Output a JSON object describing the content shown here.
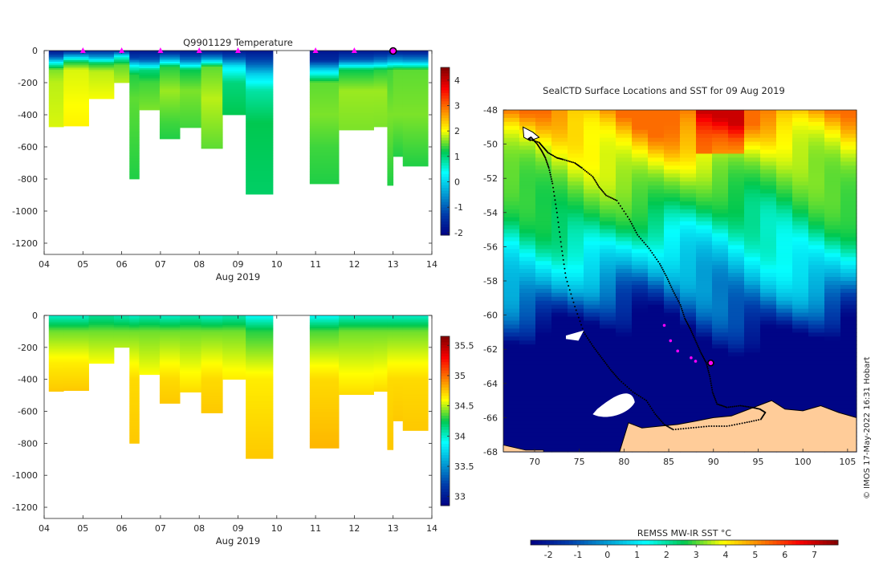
{
  "figure": {
    "credit": "© IMOS 17-May-2022 16:31 Hobart",
    "track_color": "#000000",
    "marker_color": "#ff00ff",
    "land_color": "#ffcc99"
  },
  "chart_data": [
    {
      "type": "heatmap",
      "name": "temperature-section",
      "title": "Q9901129  Temperature",
      "xlabel": "Aug 2019",
      "ylabel": "",
      "x_ticks": [
        "04",
        "05",
        "06",
        "07",
        "08",
        "09",
        "10",
        "11",
        "12",
        "13",
        "14"
      ],
      "x_tick_values": [
        4,
        5,
        6,
        7,
        8,
        9,
        10,
        11,
        12,
        13,
        14
      ],
      "y_ticks": [
        "0",
        "-200",
        "-400",
        "-600",
        "-800",
        "-1000",
        "-1200"
      ],
      "y_tick_values": [
        0,
        -200,
        -400,
        -600,
        -800,
        -1000,
        -1200
      ],
      "xlim": [
        4,
        14
      ],
      "ylim": [
        -1270,
        0
      ],
      "colorbar": {
        "ticks": [
          "-2",
          "-1",
          "0",
          "1",
          "2",
          "3",
          "4"
        ],
        "tick_values": [
          -2,
          -1,
          0,
          1,
          2,
          3,
          4
        ],
        "range": [
          -2.1,
          4.5
        ]
      },
      "profile_markers_x": [
        5,
        6,
        7,
        8,
        9,
        11,
        12,
        13
      ],
      "highlight_profile_x": 13,
      "profiles": [
        {
          "t0": 4.12,
          "t1": 4.5,
          "max_depth": 475
        },
        {
          "t0": 4.5,
          "t1": 5.15,
          "max_depth": 470
        },
        {
          "t0": 5.15,
          "t1": 5.8,
          "max_depth": 300
        },
        {
          "t0": 5.8,
          "t1": 6.2,
          "max_depth": 200
        },
        {
          "t0": 6.2,
          "t1": 6.45,
          "max_depth": 800
        },
        {
          "t0": 6.45,
          "t1": 6.98,
          "max_depth": 370
        },
        {
          "t0": 6.98,
          "t1": 7.5,
          "max_depth": 550
        },
        {
          "t0": 7.5,
          "t1": 8.05,
          "max_depth": 480
        },
        {
          "t0": 8.05,
          "t1": 8.6,
          "max_depth": 610
        },
        {
          "t0": 8.6,
          "t1": 9.2,
          "max_depth": 400
        },
        {
          "t0": 9.2,
          "t1": 9.9,
          "max_depth": 895
        },
        {
          "t0": 10.85,
          "t1": 11.6,
          "max_depth": 830
        },
        {
          "t0": 11.6,
          "t1": 12.5,
          "max_depth": 495
        },
        {
          "t0": 12.5,
          "t1": 12.85,
          "max_depth": 475
        },
        {
          "t0": 12.85,
          "t1": 13.0,
          "max_depth": 840
        },
        {
          "t0": 13.0,
          "t1": 13.25,
          "max_depth": 660
        },
        {
          "t0": 13.25,
          "t1": 13.9,
          "max_depth": 720
        }
      ],
      "profile_values": [
        [
          [
            0,
            -1.8
          ],
          [
            40,
            -1.0
          ],
          [
            80,
            0.5
          ],
          [
            120,
            1.6
          ],
          [
            200,
            1.8
          ],
          [
            475,
            1.9
          ]
        ],
        [
          [
            0,
            -1.7
          ],
          [
            30,
            -0.5
          ],
          [
            70,
            1.2
          ],
          [
            120,
            1.9
          ],
          [
            470,
            2.1
          ]
        ],
        [
          [
            0,
            -1.5
          ],
          [
            40,
            -0.5
          ],
          [
            80,
            1.2
          ],
          [
            130,
            1.8
          ],
          [
            300,
            2.0
          ]
        ],
        [
          [
            0,
            -1.6
          ],
          [
            40,
            0.5
          ],
          [
            90,
            1.5
          ],
          [
            200,
            1.8
          ]
        ],
        [
          [
            0,
            -1.8
          ],
          [
            50,
            -1.2
          ],
          [
            100,
            0.5
          ],
          [
            150,
            1.3
          ],
          [
            300,
            1.5
          ],
          [
            800,
            1.3
          ]
        ],
        [
          [
            0,
            -1.8
          ],
          [
            60,
            -1.0
          ],
          [
            120,
            1.0
          ],
          [
            200,
            1.4
          ],
          [
            370,
            1.6
          ]
        ],
        [
          [
            0,
            -1.8
          ],
          [
            50,
            -0.5
          ],
          [
            100,
            1.3
          ],
          [
            250,
            1.7
          ],
          [
            450,
            1.4
          ],
          [
            550,
            1.3
          ]
        ],
        [
          [
            0,
            -1.8
          ],
          [
            60,
            -0.8
          ],
          [
            120,
            1.2
          ],
          [
            250,
            1.6
          ],
          [
            480,
            1.4
          ]
        ],
        [
          [
            0,
            -1.8
          ],
          [
            50,
            -0.5
          ],
          [
            100,
            1.5
          ],
          [
            300,
            1.8
          ],
          [
            610,
            1.5
          ]
        ],
        [
          [
            0,
            -1.8
          ],
          [
            50,
            -1.0
          ],
          [
            100,
            0.2
          ],
          [
            200,
            1.0
          ],
          [
            400,
            1.2
          ]
        ],
        [
          [
            0,
            -1.8
          ],
          [
            80,
            -1.0
          ],
          [
            150,
            0.0
          ],
          [
            250,
            0.8
          ],
          [
            450,
            1.2
          ],
          [
            895,
            1.1
          ]
        ],
        [
          [
            0,
            -1.8
          ],
          [
            60,
            -1.5
          ],
          [
            120,
            0.0
          ],
          [
            200,
            1.5
          ],
          [
            400,
            1.6
          ],
          [
            600,
            1.4
          ],
          [
            830,
            1.3
          ]
        ],
        [
          [
            0,
            -1.8
          ],
          [
            60,
            -1.0
          ],
          [
            120,
            1.2
          ],
          [
            250,
            1.7
          ],
          [
            495,
            1.6
          ]
        ],
        [
          [
            0,
            -1.8
          ],
          [
            60,
            -0.8
          ],
          [
            120,
            1.3
          ],
          [
            250,
            1.7
          ],
          [
            475,
            1.6
          ]
        ],
        [
          [
            0,
            -1.8
          ],
          [
            60,
            -0.5
          ],
          [
            120,
            1.4
          ],
          [
            400,
            1.6
          ],
          [
            840,
            1.3
          ]
        ],
        [
          [
            0,
            -1.8
          ],
          [
            60,
            -0.5
          ],
          [
            120,
            1.5
          ],
          [
            400,
            1.6
          ],
          [
            660,
            1.3
          ]
        ],
        [
          [
            0,
            -1.8
          ],
          [
            60,
            -0.6
          ],
          [
            120,
            1.5
          ],
          [
            400,
            1.6
          ],
          [
            720,
            1.3
          ]
        ]
      ]
    },
    {
      "type": "heatmap",
      "name": "salinity-section",
      "title": "",
      "xlabel": "Aug 2019",
      "ylabel": "",
      "x_ticks": [
        "04",
        "05",
        "06",
        "07",
        "08",
        "09",
        "10",
        "11",
        "12",
        "13",
        "14"
      ],
      "x_tick_values": [
        4,
        5,
        6,
        7,
        8,
        9,
        10,
        11,
        12,
        13,
        14
      ],
      "y_ticks": [
        "0",
        "-200",
        "-400",
        "-600",
        "-800",
        "-1000",
        "-1200"
      ],
      "y_tick_values": [
        0,
        -200,
        -400,
        -600,
        -800,
        -1000,
        -1200
      ],
      "xlim": [
        4,
        14
      ],
      "ylim": [
        -1270,
        0
      ],
      "colorbar": {
        "ticks": [
          "33",
          "33.5",
          "34",
          "34.5",
          "35",
          "35.5"
        ],
        "tick_values": [
          33,
          33.5,
          34,
          34.5,
          35,
          35.5
        ],
        "range": [
          32.85,
          35.65
        ]
      },
      "profiles_same_as": "temperature-section",
      "profile_values": [
        [
          [
            0,
            34.0
          ],
          [
            100,
            34.4
          ],
          [
            300,
            34.65
          ],
          [
            475,
            34.75
          ]
        ],
        [
          [
            0,
            34.0
          ],
          [
            100,
            34.4
          ],
          [
            300,
            34.65
          ],
          [
            470,
            34.75
          ]
        ],
        [
          [
            0,
            34.1
          ],
          [
            100,
            34.4
          ],
          [
            300,
            34.6
          ]
        ],
        [
          [
            0,
            34.05
          ],
          [
            100,
            34.4
          ],
          [
            200,
            34.5
          ]
        ],
        [
          [
            0,
            34.0
          ],
          [
            100,
            34.4
          ],
          [
            400,
            34.7
          ],
          [
            800,
            34.75
          ]
        ],
        [
          [
            0,
            34.05
          ],
          [
            100,
            34.4
          ],
          [
            370,
            34.6
          ]
        ],
        [
          [
            0,
            34.0
          ],
          [
            100,
            34.4
          ],
          [
            400,
            34.7
          ],
          [
            550,
            34.75
          ]
        ],
        [
          [
            0,
            34.05
          ],
          [
            100,
            34.4
          ],
          [
            480,
            34.7
          ]
        ],
        [
          [
            0,
            34.0
          ],
          [
            100,
            34.4
          ],
          [
            400,
            34.7
          ],
          [
            610,
            34.75
          ]
        ],
        [
          [
            0,
            34.05
          ],
          [
            100,
            34.4
          ],
          [
            400,
            34.65
          ]
        ],
        [
          [
            0,
            33.9
          ],
          [
            100,
            34.3
          ],
          [
            400,
            34.65
          ],
          [
            895,
            34.75
          ]
        ],
        [
          [
            0,
            33.9
          ],
          [
            100,
            34.35
          ],
          [
            400,
            34.7
          ],
          [
            830,
            34.8
          ]
        ],
        [
          [
            0,
            34.0
          ],
          [
            100,
            34.4
          ],
          [
            495,
            34.7
          ]
        ],
        [
          [
            0,
            34.0
          ],
          [
            100,
            34.4
          ],
          [
            475,
            34.7
          ]
        ],
        [
          [
            0,
            34.0
          ],
          [
            100,
            34.4
          ],
          [
            400,
            34.7
          ],
          [
            840,
            34.75
          ]
        ],
        [
          [
            0,
            34.0
          ],
          [
            100,
            34.4
          ],
          [
            400,
            34.7
          ],
          [
            660,
            34.75
          ]
        ],
        [
          [
            0,
            34.0
          ],
          [
            100,
            34.4
          ],
          [
            400,
            34.7
          ],
          [
            720,
            34.75
          ]
        ]
      ]
    },
    {
      "type": "heatmap",
      "name": "sst-map",
      "title": "SealCTD Surface Locations and SST for 09 Aug 2019",
      "xlabel": "",
      "ylabel": "",
      "x_ticks": [
        "70",
        "75",
        "80",
        "85",
        "90",
        "95",
        "100",
        "105"
      ],
      "x_tick_values": [
        70,
        75,
        80,
        85,
        90,
        95,
        100,
        105
      ],
      "y_ticks": [
        "-48",
        "-50",
        "-52",
        "-54",
        "-56",
        "-58",
        "-60",
        "-62",
        "-64",
        "-66",
        "-68"
      ],
      "y_tick_values": [
        -48,
        -50,
        -52,
        -54,
        -56,
        -58,
        -60,
        -62,
        -64,
        -66,
        -68
      ],
      "xlim": [
        66.5,
        106
      ],
      "ylim": [
        -68,
        -48
      ],
      "colorbar": {
        "label": "REMSS MW-IR SST °C",
        "ticks": [
          "-2",
          "-1",
          "0",
          "1",
          "2",
          "3",
          "4",
          "5",
          "6",
          "7"
        ],
        "tick_values": [
          -2,
          -1,
          0,
          1,
          2,
          3,
          4,
          5,
          6,
          7
        ],
        "range": [
          -2.6,
          7.8
        ]
      },
      "track_lon": [
        69.3,
        70.5,
        71.0,
        71.5,
        72.5,
        73.2,
        74.5,
        75.3,
        76.5,
        77.2,
        78.0,
        79.2,
        80.6,
        81.5,
        82.8,
        84.0,
        84.8,
        85.5,
        86.3,
        86.8,
        87.4,
        88.0,
        88.6,
        89.2,
        89.6,
        89.9,
        90.4,
        91.5,
        93.0,
        94.3,
        95.2,
        95.8,
        95.3,
        93.5,
        91.5,
        89.5,
        87.5,
        85.5,
        84.5,
        83.5,
        82.5,
        81.0,
        79.5,
        78.5,
        77.5,
        76.5,
        75.5,
        74.5,
        73.5,
        73.0,
        72.5,
        72.0,
        71.6,
        71.2,
        70.8,
        70.3,
        69.6,
        69.3
      ],
      "track_lat": [
        -49.7,
        -49.9,
        -50.2,
        -50.5,
        -50.8,
        -50.9,
        -51.1,
        -51.4,
        -51.9,
        -52.5,
        -53.0,
        -53.3,
        -54.4,
        -55.3,
        -56.1,
        -57.0,
        -57.8,
        -58.6,
        -59.4,
        -60.2,
        -60.8,
        -61.5,
        -62.2,
        -62.8,
        -63.6,
        -64.5,
        -65.2,
        -65.4,
        -65.3,
        -65.4,
        -65.5,
        -65.7,
        -66.1,
        -66.3,
        -66.5,
        -66.5,
        -66.6,
        -66.7,
        -66.4,
        -65.8,
        -65.0,
        -64.5,
        -63.8,
        -63.2,
        -62.5,
        -61.8,
        -61.0,
        -59.5,
        -57.8,
        -56.0,
        -54.0,
        -52.3,
        -51.4,
        -50.8,
        -50.4,
        -50.0,
        -49.6,
        -49.7
      ],
      "profile_lon": [
        84.5,
        85.2,
        86.0,
        87.5,
        88.0
      ],
      "profile_lat": [
        -60.6,
        -61.5,
        -62.1,
        -62.5,
        -62.7
      ],
      "current_lon": 89.7,
      "current_lat": -62.8,
      "sst_anchor_lat": [
        -48,
        -50,
        -52,
        -54,
        -56,
        -58,
        -60,
        -61,
        -62,
        -63,
        -68
      ],
      "sst_anchor_val": [
        5.4,
        4.0,
        3.2,
        2.6,
        1.3,
        0.2,
        -1.5,
        -2.5,
        -2.5,
        -2.5,
        -2.5
      ]
    }
  ]
}
